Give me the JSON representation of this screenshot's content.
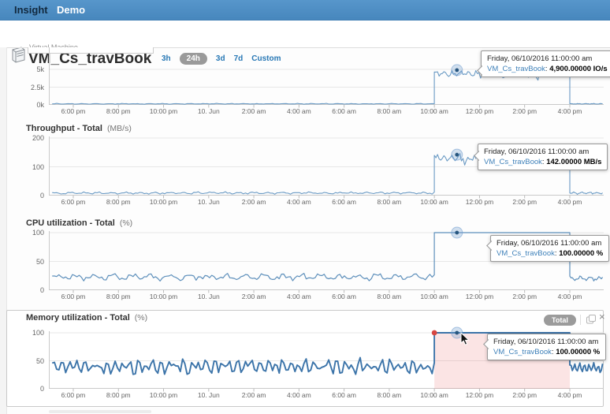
{
  "topbar": {
    "app_name": "Insight",
    "nav_item": "Demo"
  },
  "header": {
    "entity_type": "Virtual Machine",
    "entity_name": "VM_Cs_travBook",
    "time_ranges": [
      {
        "label": "3h",
        "selected": false
      },
      {
        "label": "24h",
        "selected": true
      },
      {
        "label": "3d",
        "selected": false
      },
      {
        "label": "7d",
        "selected": false
      },
      {
        "label": "Custom",
        "selected": false
      }
    ]
  },
  "colors": {
    "topbar_blue": "#4e8ec5",
    "link_blue": "#2878b5",
    "selected_pill_bg": "#9a9a9a",
    "line_blue": "#6a9ac4",
    "line_blue_selected": "#3c74a9",
    "selection_fill": "rgba(231,108,108,0.18)",
    "selection_dot": "#d64541",
    "tooltip_series_blue": "#3e80b9",
    "grid_gray": "#e7e7e7",
    "axis_gray": "#c9c9c9"
  },
  "memory_panel": {
    "badge": "Total"
  },
  "chart_data": [
    {
      "id": "iops-total",
      "type": "line",
      "title": "",
      "unit_label": "",
      "series_name": "VM_Cs_travBook",
      "x_ticks": [
        "6:00 pm",
        "8:00 pm",
        "10:00 pm",
        "10. Jun",
        "2:00 am",
        "4:00 am",
        "6:00 am",
        "8:00 am",
        "10:00 am",
        "12:00 pm",
        "2:00 pm",
        "4:00 pm"
      ],
      "y_tick_labels": [
        "0k",
        "2.5k",
        "5k"
      ],
      "y_tick_values": [
        0,
        2500,
        5000
      ],
      "ylim": [
        0,
        8000
      ],
      "baseline_value": 150,
      "peak_value": 4900,
      "peak_start": "10:00 am",
      "peak_end": "4:00 pm",
      "end_value": 150,
      "line_color": "#6a9ac4",
      "tooltip": {
        "date": "Friday, 06/10/2016 11:00:00 am",
        "series": "VM_Cs_travBook",
        "value_str": "4,900.00000 IO/s",
        "value_num": 4900
      }
    },
    {
      "id": "throughput-total",
      "type": "line",
      "title": "Throughput - Total",
      "unit_label": "(MB/s)",
      "series_name": "VM_Cs_travBook",
      "x_ticks": [
        "6:00 pm",
        "8:00 pm",
        "10:00 pm",
        "10. Jun",
        "2:00 am",
        "4:00 am",
        "6:00 am",
        "8:00 am",
        "10:00 am",
        "12:00 pm",
        "2:00 pm",
        "4:00 pm"
      ],
      "y_tick_labels": [
        "0",
        "100",
        "200"
      ],
      "y_tick_values": [
        0,
        100,
        200
      ],
      "ylim": [
        0,
        205
      ],
      "baseline_value": 9,
      "peak_value": 142,
      "peak_start": "10:00 am",
      "peak_end": "4:00 pm",
      "end_value": 9,
      "line_color": "#6a9ac4",
      "tooltip": {
        "date": "Friday, 06/10/2016 11:00:00 am",
        "series": "VM_Cs_travBook",
        "value_str": "142.00000 MB/s",
        "value_num": 142
      }
    },
    {
      "id": "cpu-utilization-total",
      "type": "line",
      "title": "CPU utilization - Total",
      "unit_label": "(%)",
      "series_name": "VM_Cs_travBook",
      "x_ticks": [
        "6:00 pm",
        "8:00 pm",
        "10:00 pm",
        "10. Jun",
        "2:00 am",
        "4:00 am",
        "6:00 am",
        "8:00 am",
        "10:00 am",
        "12:00 pm",
        "2:00 pm",
        "4:00 pm"
      ],
      "y_tick_labels": [
        "0",
        "50",
        "100"
      ],
      "y_tick_values": [
        0,
        50,
        100
      ],
      "ylim": [
        0,
        102
      ],
      "baseline_value": 23,
      "peak_value": 100,
      "peak_start": "10:00 am",
      "peak_end": "4:00 pm",
      "end_value": 20,
      "line_color": "#5d8fbb",
      "tooltip": {
        "date": "Friday, 06/10/2016 11:00:00 am",
        "series": "VM_Cs_travBook",
        "value_str": "100.00000 %",
        "value_num": 100
      }
    },
    {
      "id": "memory-utilization-total",
      "type": "line",
      "title": "Memory utilization - Total",
      "unit_label": "(%)",
      "series_name": "VM_Cs_travBook",
      "selected": true,
      "x_ticks": [
        "6:00 pm",
        "8:00 pm",
        "10:00 pm",
        "10. Jun",
        "2:00 am",
        "4:00 am",
        "6:00 am",
        "8:00 am",
        "10:00 am",
        "12:00 pm",
        "2:00 pm",
        "4:00 pm"
      ],
      "y_tick_labels": [
        "0",
        "50",
        "100"
      ],
      "y_tick_values": [
        0,
        50,
        100
      ],
      "ylim": [
        0,
        102
      ],
      "baseline_value": 40,
      "peak_value": 100,
      "peak_start": "10:00 am",
      "peak_end": "4:00 pm",
      "end_value": 37,
      "line_color": "#3c74a9",
      "tooltip": {
        "date": "Friday, 06/10/2016 11:00:00 am",
        "series": "VM_Cs_travBook",
        "value_str": "100.00000 %",
        "value_num": 100
      }
    }
  ]
}
